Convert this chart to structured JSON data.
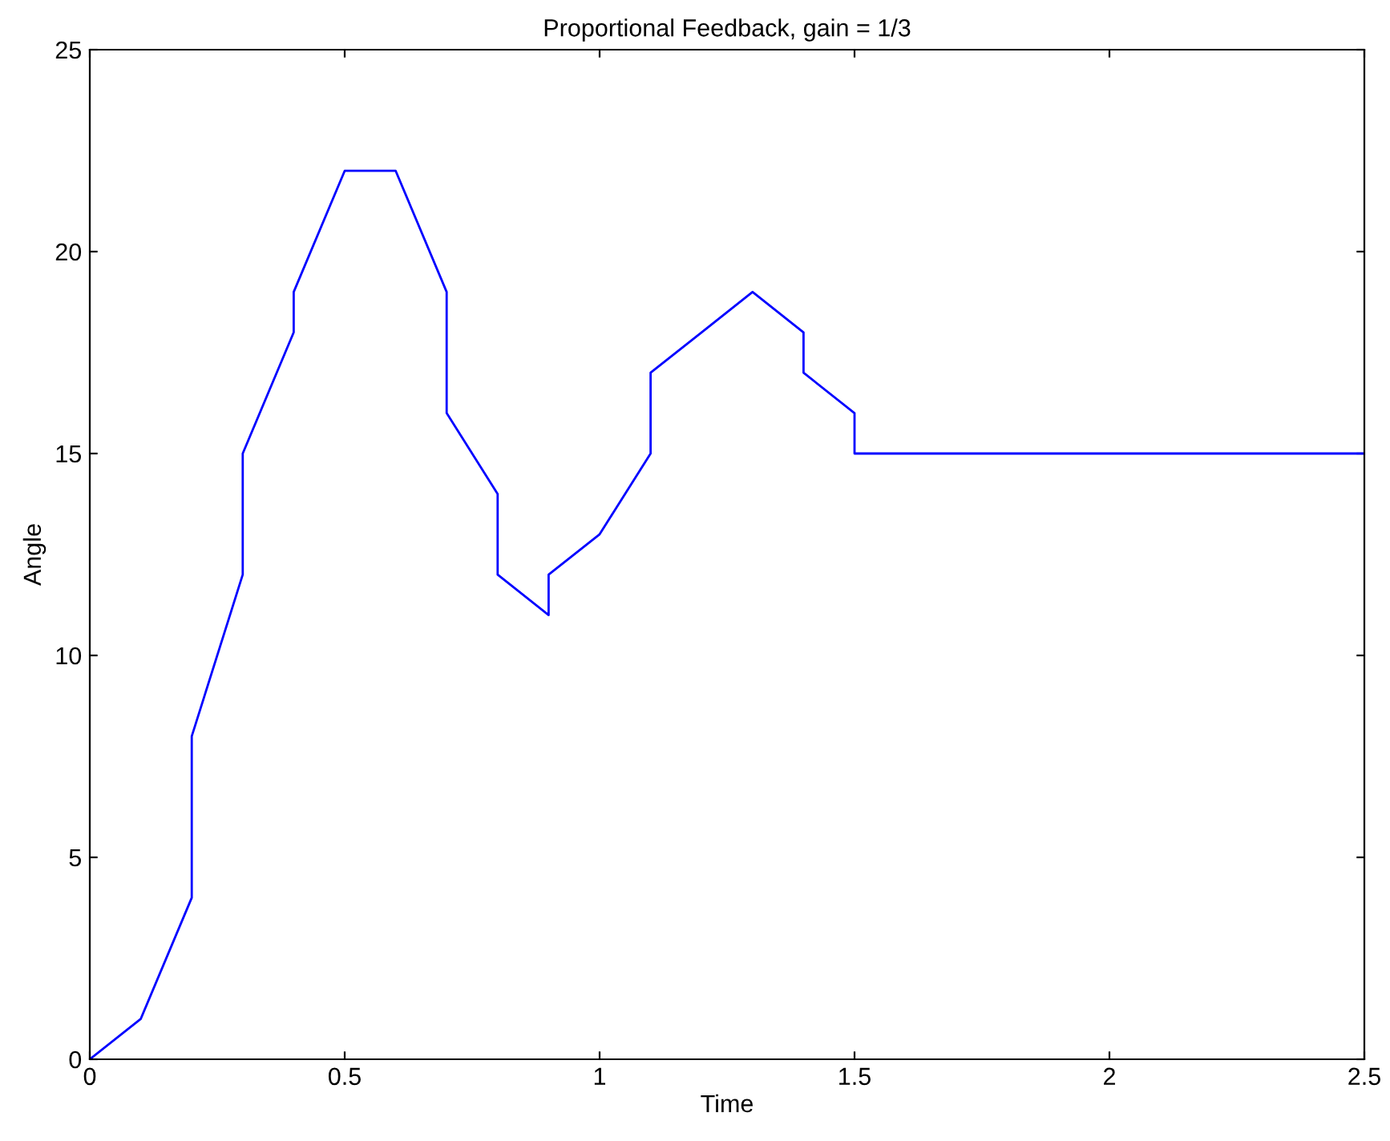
{
  "chart_data": {
    "type": "line",
    "title": "Proportional Feedback, gain = 1/3",
    "xlabel": "Time",
    "ylabel": "Angle",
    "x": [
      0,
      0.1,
      0.2,
      0.2,
      0.3,
      0.3,
      0.4,
      0.4,
      0.5,
      0.6,
      0.7,
      0.7,
      0.8,
      0.8,
      0.9,
      0.9,
      1.0,
      1.1,
      1.1,
      1.2,
      1.3,
      1.4,
      1.4,
      1.5,
      1.5,
      2.5
    ],
    "series": [
      {
        "color": "#0000ff",
        "values": [
          0,
          1,
          4,
          8,
          12,
          15,
          18,
          19,
          22,
          22,
          19,
          16,
          14,
          12,
          11,
          12,
          13,
          15,
          17,
          18,
          19,
          18,
          17,
          16,
          15,
          15
        ]
      }
    ],
    "xlim": [
      0,
      2.5
    ],
    "ylim": [
      0,
      25
    ],
    "xticks": [
      0,
      0.5,
      1,
      1.5,
      2,
      2.5
    ],
    "yticks": [
      0,
      5,
      10,
      15,
      20,
      25
    ],
    "grid": false,
    "legend": false,
    "marker": "none",
    "line_style": "solid"
  }
}
